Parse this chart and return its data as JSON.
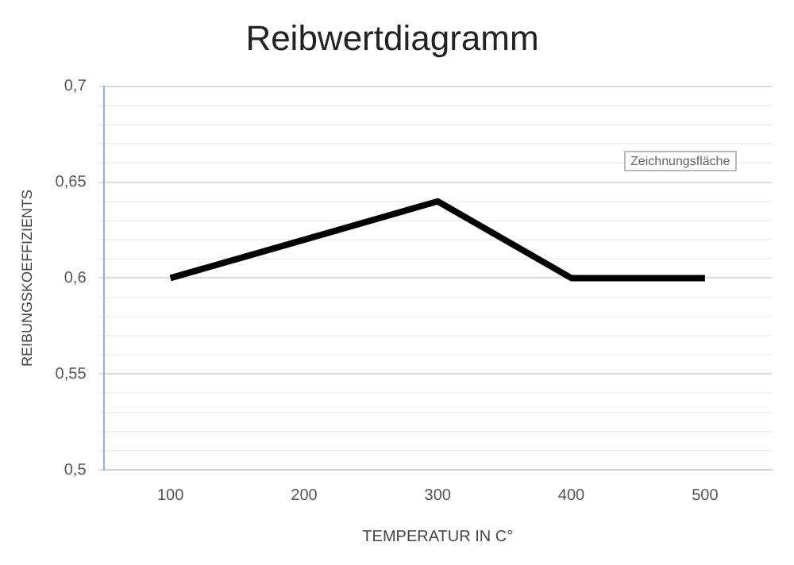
{
  "chart_data": {
    "type": "line",
    "title": "Reibwertdiagramm",
    "xlabel": "TEMPERATUR IN C°",
    "ylabel": "REIBUNGSKOEFFIZIENTS",
    "categories": [
      "100",
      "200",
      "300",
      "400",
      "500"
    ],
    "series": [
      {
        "color": "#000000",
        "values": [
          0.6,
          0.62,
          0.64,
          0.6,
          0.6
        ]
      }
    ],
    "ylim": [
      0.5,
      0.7
    ],
    "yticks": [
      {
        "value": 0.5,
        "label": "0,5"
      },
      {
        "value": 0.51,
        "label": null
      },
      {
        "value": 0.52,
        "label": null
      },
      {
        "value": 0.53,
        "label": null
      },
      {
        "value": 0.54,
        "label": null
      },
      {
        "value": 0.55,
        "label": "0,55"
      },
      {
        "value": 0.56,
        "label": null
      },
      {
        "value": 0.57,
        "label": null
      },
      {
        "value": 0.58,
        "label": null
      },
      {
        "value": 0.59,
        "label": null
      },
      {
        "value": 0.6,
        "label": "0,6"
      },
      {
        "value": 0.61,
        "label": null
      },
      {
        "value": 0.62,
        "label": null
      },
      {
        "value": 0.63,
        "label": null
      },
      {
        "value": 0.64,
        "label": null
      },
      {
        "value": 0.65,
        "label": "0,65"
      },
      {
        "value": 0.66,
        "label": null
      },
      {
        "value": 0.67,
        "label": null
      },
      {
        "value": 0.68,
        "label": null
      },
      {
        "value": 0.69,
        "label": null
      },
      {
        "value": 0.7,
        "label": "0,7"
      }
    ],
    "grid": "y",
    "legend": false,
    "marker": "none",
    "line_style": "solid",
    "annotations": [
      "Zeichnungsfläche"
    ]
  }
}
